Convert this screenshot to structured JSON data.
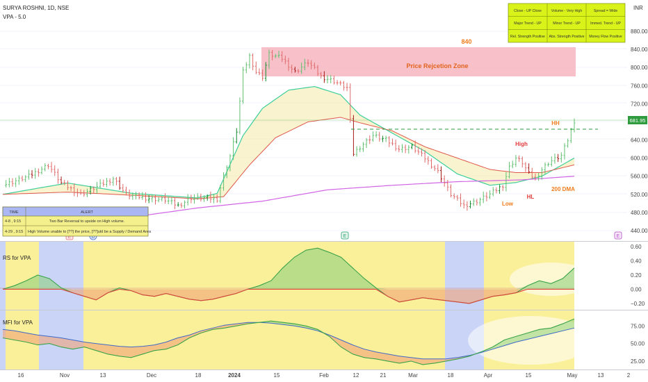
{
  "header": {
    "symbol_line": "SURYA ROSHNI, 1D, NSE",
    "indicator_line": "VPA - 5.0",
    "currency": "INR"
  },
  "status_table": {
    "rows": [
      [
        "Close - UP Close",
        "Volume - Very High",
        "Spread = Wide"
      ],
      [
        "Major Trend - UP",
        "Minor Trend - UP",
        "Immed. Trend - UP"
      ],
      [
        "Rel. Strength Positive",
        "Abs. Strength Positive",
        "Money Flow Positive"
      ]
    ]
  },
  "alert_table": {
    "headers": [
      "TIME",
      "ALERT"
    ],
    "rows": [
      [
        "4-8  , 9:15",
        "Two Bar Reversal to upside on High volume."
      ],
      [
        "4-29  , 9:15",
        "High Volume unable to [??] the price, [??]uld be a Supply / Demand Area"
      ]
    ]
  },
  "annotations": {
    "zone_label": "Price Rejcetion Zone",
    "zone_level": "840",
    "hh": "HH",
    "high": "High",
    "low": "Low",
    "hl": "HL",
    "dma": "200 DMA",
    "last_price": "681.95"
  },
  "event_markers": [
    "E",
    "D",
    "E",
    "E"
  ],
  "panes": {
    "rs_title": "RS for VPA",
    "mfi_title": "MFI for VPA"
  },
  "chart_data": [
    {
      "type": "candlestick",
      "title": "SURYA ROSHNI, 1D, NSE",
      "ylim": [
        425,
        905
      ],
      "y_ticks": [
        880,
        840,
        800,
        760,
        720,
        680,
        640,
        600,
        560,
        520,
        480,
        440
      ],
      "x_tick_labels": [
        "16",
        "Nov",
        "13",
        "Dec",
        "18",
        "2024",
        "15",
        "Feb",
        "12",
        "21",
        "Mar",
        "18",
        "Apr",
        "15",
        "May",
        "13",
        "2"
      ],
      "price_rejection_zone": [
        780,
        840
      ],
      "approx_close_path": [
        [
          0,
          540
        ],
        [
          8,
          560
        ],
        [
          14,
          585
        ],
        [
          18,
          545
        ],
        [
          24,
          520
        ],
        [
          30,
          540
        ],
        [
          34,
          555
        ],
        [
          38,
          520
        ],
        [
          44,
          512
        ],
        [
          50,
          508
        ],
        [
          54,
          495
        ],
        [
          58,
          512
        ],
        [
          62,
          512
        ],
        [
          66,
          510
        ],
        [
          68,
          560
        ],
        [
          70,
          605
        ],
        [
          72,
          660
        ],
        [
          74,
          790
        ],
        [
          76,
          825
        ],
        [
          78,
          790
        ],
        [
          80,
          780
        ],
        [
          82,
          830
        ],
        [
          86,
          820
        ],
        [
          90,
          790
        ],
        [
          94,
          812
        ],
        [
          98,
          780
        ],
        [
          102,
          770
        ],
        [
          106,
          755
        ],
        [
          108,
          610
        ],
        [
          110,
          625
        ],
        [
          114,
          650
        ],
        [
          118,
          640
        ],
        [
          122,
          620
        ],
        [
          126,
          625
        ],
        [
          130,
          600
        ],
        [
          134,
          570
        ],
        [
          138,
          520
        ],
        [
          142,
          495
        ],
        [
          146,
          505
        ],
        [
          150,
          520
        ],
        [
          154,
          540
        ],
        [
          156,
          580
        ],
        [
          158,
          600
        ],
        [
          160,
          590
        ],
        [
          162,
          565
        ],
        [
          164,
          555
        ],
        [
          166,
          575
        ],
        [
          168,
          590
        ],
        [
          172,
          605
        ],
        [
          174,
          640
        ],
        [
          176,
          681.95
        ]
      ],
      "ema_fast_path": [
        [
          0,
          520
        ],
        [
          20,
          545
        ],
        [
          40,
          522
        ],
        [
          60,
          512
        ],
        [
          66,
          522
        ],
        [
          74,
          650
        ],
        [
          80,
          710
        ],
        [
          88,
          750
        ],
        [
          96,
          758
        ],
        [
          104,
          740
        ],
        [
          110,
          695
        ],
        [
          120,
          655
        ],
        [
          130,
          615
        ],
        [
          140,
          565
        ],
        [
          150,
          540
        ],
        [
          158,
          546
        ],
        [
          166,
          560
        ],
        [
          176,
          600
        ]
      ],
      "ema_slow_path": [
        [
          0,
          520
        ],
        [
          20,
          525
        ],
        [
          40,
          518
        ],
        [
          60,
          510
        ],
        [
          68,
          515
        ],
        [
          76,
          585
        ],
        [
          84,
          645
        ],
        [
          94,
          680
        ],
        [
          104,
          690
        ],
        [
          110,
          678
        ],
        [
          120,
          660
        ],
        [
          130,
          625
        ],
        [
          140,
          600
        ],
        [
          150,
          575
        ],
        [
          158,
          568
        ],
        [
          166,
          568
        ],
        [
          176,
          585
        ]
      ],
      "dma_200_path": [
        [
          0,
          445
        ],
        [
          30,
          460
        ],
        [
          60,
          490
        ],
        [
          80,
          505
        ],
        [
          100,
          530
        ],
        [
          120,
          540
        ],
        [
          140,
          548
        ],
        [
          160,
          552
        ],
        [
          176,
          560
        ]
      ],
      "level_lines": [
        681.95,
        660
      ]
    },
    {
      "type": "line",
      "title": "RS for VPA",
      "ylim": [
        -0.25,
        0.65
      ],
      "y_ticks": [
        0.6,
        0.4,
        0.2,
        0.0,
        -0.2
      ],
      "values": [
        0.0,
        0.05,
        0.12,
        0.2,
        0.15,
        0.02,
        -0.05,
        -0.1,
        -0.15,
        -0.05,
        0.02,
        -0.02,
        -0.08,
        -0.1,
        -0.06,
        -0.1,
        -0.14,
        -0.16,
        -0.14,
        -0.1,
        -0.06,
        0.0,
        0.05,
        0.12,
        0.3,
        0.45,
        0.55,
        0.58,
        0.52,
        0.45,
        0.3,
        0.15,
        0.02,
        -0.1,
        -0.18,
        -0.15,
        -0.12,
        -0.14,
        -0.16,
        -0.18,
        -0.2,
        -0.15,
        -0.1,
        -0.08,
        -0.05,
        0.05,
        0.12,
        0.08,
        0.15,
        0.3
      ]
    },
    {
      "type": "line",
      "title": "MFI for VPA",
      "ylim": [
        15,
        95
      ],
      "y_ticks": [
        75,
        50,
        25
      ],
      "values": [
        58,
        55,
        52,
        48,
        50,
        45,
        42,
        45,
        40,
        35,
        32,
        30,
        35,
        40,
        42,
        48,
        58,
        65,
        70,
        72,
        75,
        78,
        80,
        82,
        80,
        78,
        75,
        70,
        60,
        45,
        35,
        30,
        28,
        25,
        22,
        25,
        20,
        22,
        25,
        28,
        32,
        38,
        45,
        55,
        60,
        65,
        70,
        72,
        78,
        85
      ],
      "signal": [
        70,
        68,
        65,
        62,
        60,
        58,
        55,
        52,
        50,
        48,
        46,
        45,
        46,
        48,
        52,
        58,
        62,
        68,
        72,
        76,
        78,
        80,
        80,
        79,
        77,
        75,
        72,
        68,
        62,
        55,
        48,
        42,
        38,
        35,
        32,
        30,
        28,
        28,
        28,
        30,
        33,
        37,
        42,
        47,
        52,
        56,
        60,
        64,
        68,
        72
      ]
    }
  ]
}
